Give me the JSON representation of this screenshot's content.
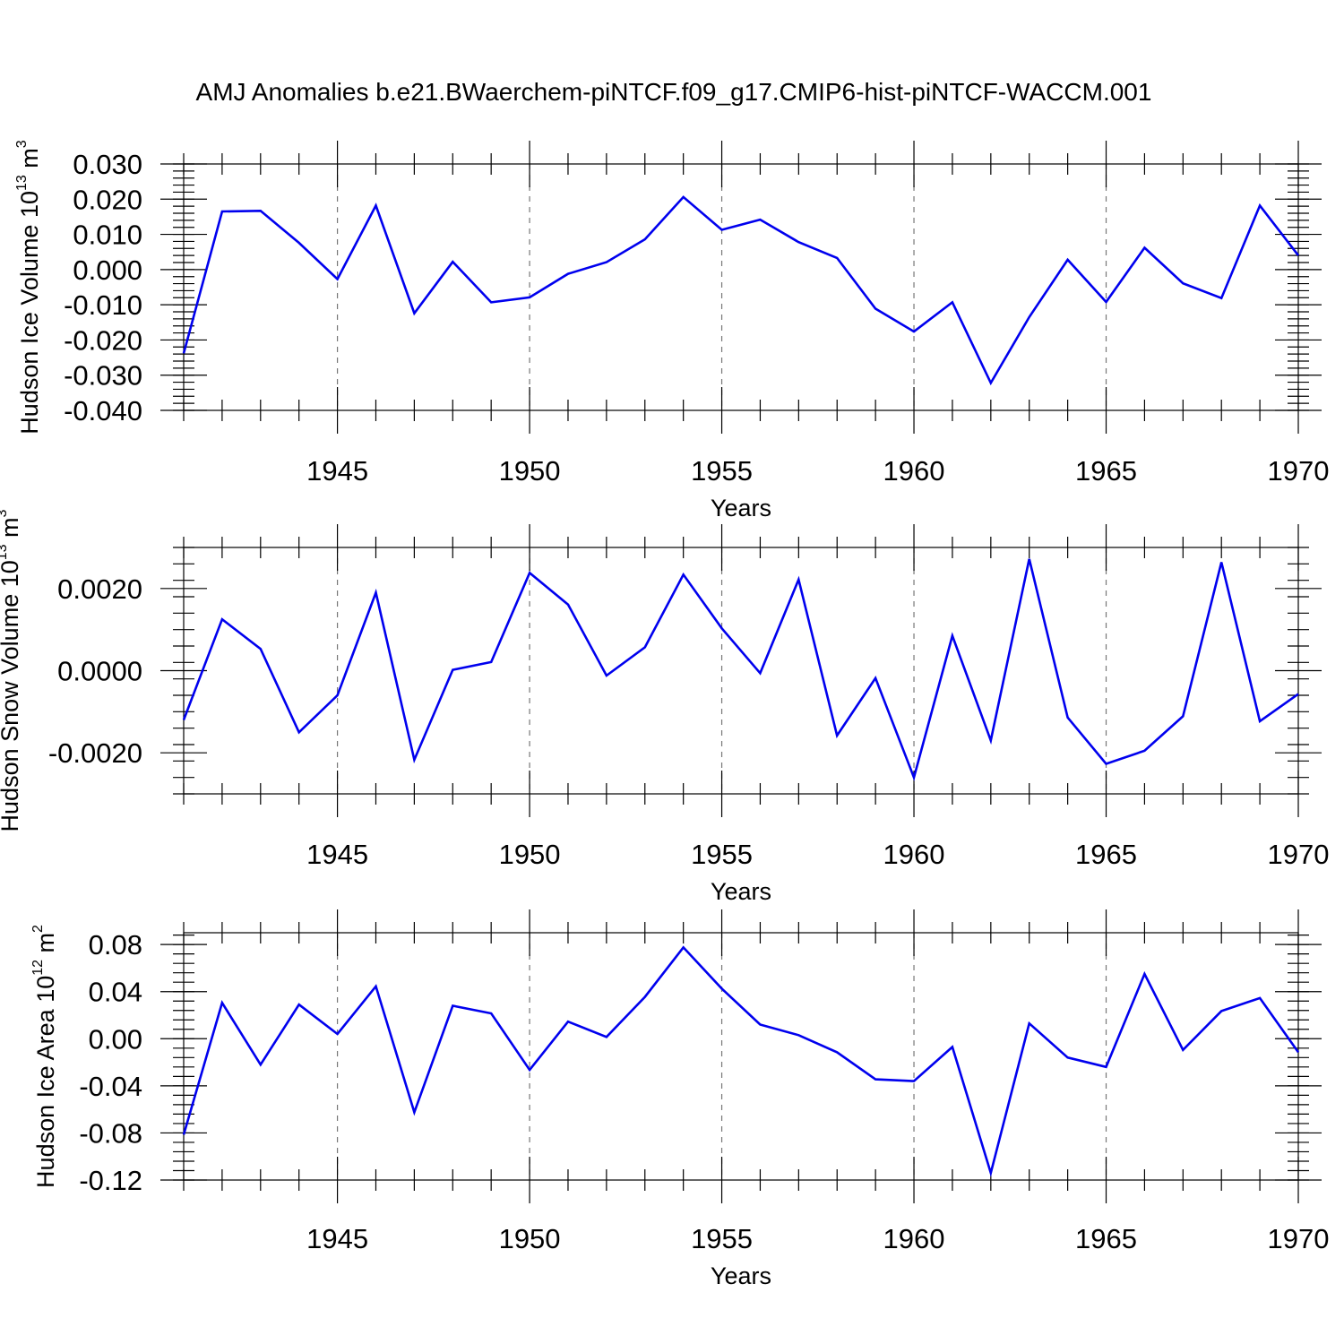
{
  "title": "AMJ Anomalies b.e21.BWaerchem-piNTCF.f09_g17.CMIP6-hist-piNTCF-WACCM.001",
  "chart_data": [
    {
      "type": "line",
      "ylabel": "Hudson Ice Volume 10",
      "ylabel_exponent": "13",
      "ylabel_unit": " m",
      "ylabel_unit_exponent": "3",
      "xlabel": "Years",
      "xlim": [
        1941,
        1970
      ],
      "ylim": [
        -0.04,
        0.03
      ],
      "grid": true,
      "x_ticks": [
        "1945",
        "1950",
        "1955",
        "1960",
        "1965",
        "1970"
      ],
      "y_ticks": [
        "0.030",
        "0.020",
        "0.010",
        "0.000",
        "-0.010",
        "-0.020",
        "-0.030",
        "-0.040"
      ],
      "y_tick_values": [
        0.03,
        0.02,
        0.01,
        0.0,
        -0.01,
        -0.02,
        -0.03,
        -0.04
      ],
      "x": [
        1941,
        1942,
        1943,
        1944,
        1945,
        1946,
        1947,
        1948,
        1949,
        1950,
        1951,
        1952,
        1953,
        1954,
        1955,
        1956,
        1957,
        1958,
        1959,
        1960,
        1961,
        1962,
        1963,
        1964,
        1965,
        1966,
        1967,
        1968,
        1969,
        1970
      ],
      "values": [
        -0.0238,
        0.0165,
        0.0167,
        0.0076,
        -0.0027,
        0.0182,
        -0.0124,
        0.0022,
        -0.0093,
        -0.0079,
        -0.0012,
        0.0021,
        0.0086,
        0.0206,
        0.0113,
        0.0142,
        0.0078,
        0.0033,
        -0.0111,
        -0.0176,
        -0.0093,
        -0.0322,
        -0.0135,
        0.0028,
        -0.0092,
        0.0062,
        -0.0039,
        -0.0081,
        0.0182,
        0.004
      ]
    },
    {
      "type": "line",
      "ylabel": "Hudson Snow Volume 10",
      "ylabel_exponent": "13",
      "ylabel_unit": " m",
      "ylabel_unit_exponent": "3",
      "xlabel": "Years",
      "xlim": [
        1941,
        1970
      ],
      "ylim": [
        -0.003,
        0.003
      ],
      "grid": true,
      "x_ticks": [
        "1945",
        "1950",
        "1955",
        "1960",
        "1965",
        "1970"
      ],
      "y_ticks": [
        "0.0020",
        "0.0000",
        "-0.0020"
      ],
      "y_tick_values": [
        0.002,
        0.0,
        -0.002
      ],
      "x": [
        1941,
        1942,
        1943,
        1944,
        1945,
        1946,
        1947,
        1948,
        1949,
        1950,
        1951,
        1952,
        1953,
        1954,
        1955,
        1956,
        1957,
        1958,
        1959,
        1960,
        1961,
        1962,
        1963,
        1964,
        1965,
        1966,
        1967,
        1968,
        1969,
        1970
      ],
      "values": [
        -0.0012,
        0.00125,
        0.00053,
        -0.0015,
        -0.0006,
        0.0019,
        -0.00217,
        2e-05,
        0.00021,
        0.00238,
        0.00161,
        -0.00012,
        0.00057,
        0.00234,
        0.00103,
        -6e-05,
        0.00222,
        -0.00158,
        -0.00018,
        -0.0026,
        0.00085,
        -0.0017,
        0.00272,
        -0.00114,
        -0.00227,
        -0.00195,
        -0.00111,
        0.00264,
        -0.00123,
        -0.00057
      ]
    },
    {
      "type": "line",
      "ylabel": "Hudson Ice Area 10",
      "ylabel_exponent": "12",
      "ylabel_unit": " m",
      "ylabel_unit_exponent": "2",
      "xlabel": "Years",
      "xlim": [
        1941,
        1970
      ],
      "ylim": [
        -0.12,
        0.09
      ],
      "grid": true,
      "x_ticks": [
        "1945",
        "1950",
        "1955",
        "1960",
        "1965",
        "1970"
      ],
      "y_ticks": [
        "0.08",
        "0.04",
        "0.00",
        "-0.04",
        "-0.08",
        "-0.12"
      ],
      "y_tick_values": [
        0.08,
        0.04,
        0.0,
        -0.04,
        -0.08,
        -0.12
      ],
      "x": [
        1941,
        1942,
        1943,
        1944,
        1945,
        1946,
        1947,
        1948,
        1949,
        1950,
        1951,
        1952,
        1953,
        1954,
        1955,
        1956,
        1957,
        1958,
        1959,
        1960,
        1961,
        1962,
        1963,
        1964,
        1965,
        1966,
        1967,
        1968,
        1969,
        1970
      ],
      "values": [
        -0.0815,
        0.0305,
        -0.022,
        0.029,
        0.004,
        0.0445,
        -0.0625,
        0.028,
        0.0215,
        -0.0265,
        0.0145,
        0.0015,
        0.0355,
        0.0775,
        0.0425,
        0.012,
        0.003,
        -0.0115,
        -0.0345,
        -0.036,
        -0.007,
        -0.114,
        0.013,
        -0.016,
        -0.024,
        0.055,
        -0.0095,
        0.0235,
        0.0345,
        -0.0115
      ]
    }
  ]
}
